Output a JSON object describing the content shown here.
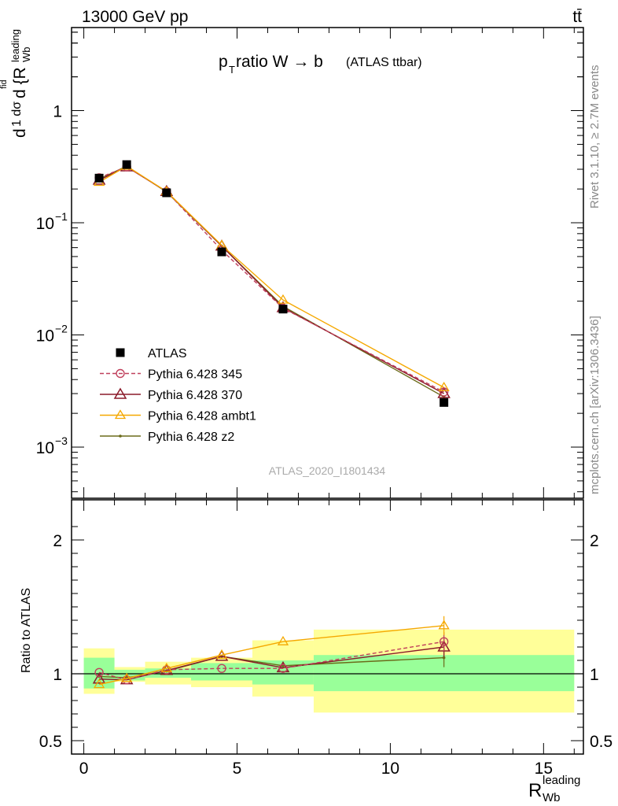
{
  "header": {
    "energy_label": "13000 GeV pp",
    "process_label": "tt̄"
  },
  "side_labels": {
    "rivet": "Rivet 3.1.10, ≥ 2.7M events",
    "mcplots": "mcplots.cern.ch [arXiv:1306.3436]"
  },
  "plot_title": {
    "main": "p",
    "sub": "T",
    "rest": " ratio W → b",
    "small": "(ATLAS ttbar)"
  },
  "watermark": "ATLAS_2020_I1801434",
  "y_axis_label": {
    "prefix": "d",
    "inner": "1 dσ",
    "expr": "d {R",
    "sup": "leading",
    "sub": "Wb",
    "fid": "fid"
  },
  "ratio_axis_label": "Ratio to ATLAS",
  "x_axis_label": {
    "main": "R",
    "sup": "leading",
    "sub": "Wb"
  },
  "colors": {
    "atlas": "#000000",
    "p345": "#c0405c",
    "p370": "#8b1a2a",
    "ambt1": "#f5a800",
    "z2": "#6b6b1a",
    "band_inner": "#99ff99",
    "band_outer": "#ffff99"
  },
  "chart_data": {
    "type": "line",
    "x": [
      0.5,
      1.4,
      2.7,
      4.5,
      6.5,
      11.75
    ],
    "x_edges": [
      0,
      1,
      2,
      3.5,
      5.5,
      7.5,
      16
    ],
    "xlim": [
      -0.4,
      16.3
    ],
    "xticks": [
      0,
      5,
      10,
      15
    ],
    "main": {
      "yscale": "log",
      "ylim": [
        0.00035,
        5.5
      ],
      "yticks": [
        {
          "value": 1,
          "label": "1",
          "exp": ""
        },
        {
          "value": 0.1,
          "label": "10",
          "exp": "−1"
        },
        {
          "value": 0.01,
          "label": "10",
          "exp": "−2"
        },
        {
          "value": 0.001,
          "label": "10",
          "exp": "−3"
        }
      ],
      "series": [
        {
          "name": "ATLAS",
          "key": "atlas",
          "values": [
            0.25,
            0.33,
            0.185,
            0.055,
            0.017,
            0.0025
          ]
        },
        {
          "name": "Pythia 6.428 345",
          "key": "p345",
          "values": [
            0.252,
            0.315,
            0.19,
            0.057,
            0.0173,
            0.0031
          ]
        },
        {
          "name": "Pythia 6.428 370",
          "key": "p370",
          "values": [
            0.24,
            0.315,
            0.19,
            0.062,
            0.0175,
            0.003
          ]
        },
        {
          "name": "Pythia 6.428 ambt1",
          "key": "ambt1",
          "values": [
            0.23,
            0.32,
            0.19,
            0.063,
            0.0205,
            0.0034
          ]
        },
        {
          "name": "Pythia 6.428 z2",
          "key": "z2",
          "values": [
            0.245,
            0.32,
            0.188,
            0.062,
            0.018,
            0.0028
          ]
        }
      ]
    },
    "ratio": {
      "ylim": [
        0.4,
        2.3
      ],
      "yticks": [
        {
          "value": 2,
          "label": "2"
        },
        {
          "value": 1,
          "label": "1"
        },
        {
          "value": 0.5,
          "label": "0.5"
        }
      ],
      "band_inner": [
        [
          0.89,
          1.12
        ],
        [
          0.95,
          1.03
        ],
        [
          0.97,
          1.04
        ],
        [
          0.95,
          1.08
        ],
        [
          0.92,
          1.1
        ],
        [
          0.87,
          1.14
        ]
      ],
      "band_outer": [
        [
          0.85,
          1.19
        ],
        [
          0.94,
          1.05
        ],
        [
          0.92,
          1.09
        ],
        [
          0.9,
          1.12
        ],
        [
          0.83,
          1.25
        ],
        [
          0.71,
          1.33
        ]
      ],
      "series": [
        {
          "key": "p345",
          "values": [
            1.01,
            0.955,
            1.03,
            1.04,
            1.04,
            1.24
          ]
        },
        {
          "key": "p370",
          "values": [
            0.96,
            0.955,
            1.025,
            1.13,
            1.045,
            1.2
          ]
        },
        {
          "key": "ambt1",
          "values": [
            0.92,
            0.965,
            1.04,
            1.14,
            1.24,
            1.36
          ]
        },
        {
          "key": "z2",
          "values": [
            0.98,
            0.97,
            1.02,
            1.13,
            1.06,
            1.12
          ]
        }
      ]
    }
  }
}
